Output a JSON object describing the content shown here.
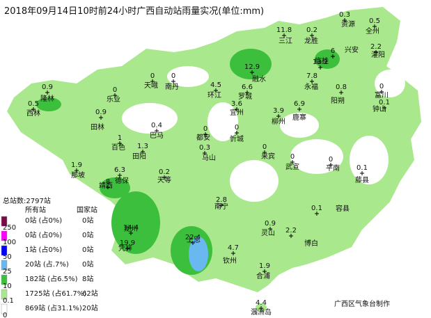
{
  "title": "2018年09月14日10时前24小时广西自动站雨量实况(单位:mm)",
  "legend": {
    "total": "总站数:2797站",
    "header_all": "所有站",
    "header_national": "国家站",
    "levels": [
      "250",
      "100",
      "50",
      "25",
      "10",
      "0.1",
      "0"
    ],
    "rows": [
      {
        "all": "0站 (占0%)",
        "national": "0站"
      },
      {
        "all": "0站 (占0%)",
        "national": "0站"
      },
      {
        "all": "1站 (占0%)",
        "national": "0站"
      },
      {
        "all": "20站 (占.7%)",
        "national": "0站"
      },
      {
        "all": "182站 (占6.5%)",
        "national": "8站"
      },
      {
        "all": "1725站 (占61.7%)",
        "national": "62站"
      },
      {
        "all": "869站 (占31.1%)",
        "national": "20站"
      }
    ]
  },
  "credit": "广西区气象台制作",
  "stations": [
    {
      "name": "资源",
      "value": 0.3
    },
    {
      "name": "全州",
      "value": 0.5
    },
    {
      "name": "三江",
      "value": 11.8
    },
    {
      "name": "龙胜",
      "value": 0.2
    },
    {
      "name": "兴安",
      "value": 6
    },
    {
      "name": "灌阳",
      "value": 2.2
    },
    {
      "name": "融水",
      "value": 12.9
    },
    {
      "name": "临桂",
      "value": 13.2
    },
    {
      "name": "永福",
      "value": 7.8
    },
    {
      "name": "天峨",
      "value": 0
    },
    {
      "name": "南丹",
      "value": 0
    },
    {
      "name": "环江",
      "value": 4.5
    },
    {
      "name": "罗城",
      "value": 6.6
    },
    {
      "name": "隆林",
      "value": 0.9
    },
    {
      "name": "西林",
      "value": 0.5
    },
    {
      "name": "乐业",
      "value": 0
    },
    {
      "name": "宜州",
      "value": 3.6
    },
    {
      "name": "柳州",
      "value": 3.9
    },
    {
      "name": "鹿寨",
      "value": 6.9
    },
    {
      "name": "阳朔",
      "value": 0.8
    },
    {
      "name": "富川",
      "value": 0
    },
    {
      "name": "钟山",
      "value": 0.1
    },
    {
      "name": "田林",
      "value": 0.9
    },
    {
      "name": "巴马",
      "value": 0.4
    },
    {
      "name": "都安",
      "value": 0
    },
    {
      "name": "忻城",
      "value": 0
    },
    {
      "name": "百色",
      "value": 1
    },
    {
      "name": "田阳",
      "value": 1.3
    },
    {
      "name": "马山",
      "value": 0.3
    },
    {
      "name": "来宾",
      "value": 0
    },
    {
      "name": "武宣",
      "value": 0
    },
    {
      "name": "平南",
      "value": 0
    },
    {
      "name": "藤县",
      "value": 0.1
    },
    {
      "name": "那坡",
      "value": 1.9
    },
    {
      "name": "德保",
      "value": 6.3
    },
    {
      "name": "靖西",
      "value": 8
    },
    {
      "name": "天等",
      "value": 0.2
    },
    {
      "name": "南宁",
      "value": 2.8
    },
    {
      "name": "容县",
      "value": 0.1
    },
    {
      "name": "龙州",
      "value": 14.4
    },
    {
      "name": "凭祥",
      "value": 19.9
    },
    {
      "name": "上思",
      "value": 22.4
    },
    {
      "name": "灵山",
      "value": 0.9
    },
    {
      "name": "博白",
      "value": 2.2
    },
    {
      "name": "钦州",
      "value": 4.7
    },
    {
      "name": "合浦",
      "value": 1.9
    },
    {
      "name": "涠洲岛",
      "value": 4.4
    }
  ]
}
